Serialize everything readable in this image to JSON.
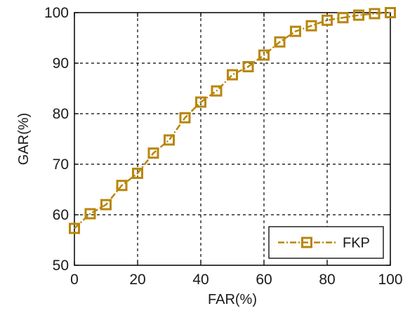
{
  "chart_data": {
    "type": "line",
    "title": "",
    "xlabel": "FAR(%)",
    "ylabel": "GAR(%)",
    "xlim": [
      0,
      100
    ],
    "ylim": [
      50,
      100
    ],
    "xticks": [
      0,
      20,
      40,
      60,
      80,
      100
    ],
    "yticks": [
      50,
      60,
      70,
      80,
      90,
      100
    ],
    "xtick_labels": [
      "0",
      "20",
      "40",
      "60",
      "80",
      "100"
    ],
    "ytick_labels": [
      "50",
      "60",
      "70",
      "80",
      "90",
      "100"
    ],
    "grid": true,
    "legend": {
      "position": "bottom-right",
      "entries": [
        "FKP"
      ]
    },
    "series": [
      {
        "name": "FKP",
        "color": "#b8860b",
        "line_style": "dash-dot",
        "marker": "square",
        "x": [
          0,
          5,
          10,
          15,
          20,
          25,
          30,
          35,
          40,
          45,
          50,
          55,
          60,
          65,
          70,
          75,
          80,
          85,
          90,
          95,
          100
        ],
        "y": [
          57.3,
          60.2,
          62.0,
          65.8,
          68.2,
          72.2,
          74.8,
          79.2,
          82.3,
          84.5,
          87.7,
          89.3,
          91.6,
          94.2,
          96.3,
          97.4,
          98.5,
          99.0,
          99.5,
          99.8,
          100.0
        ]
      }
    ]
  }
}
